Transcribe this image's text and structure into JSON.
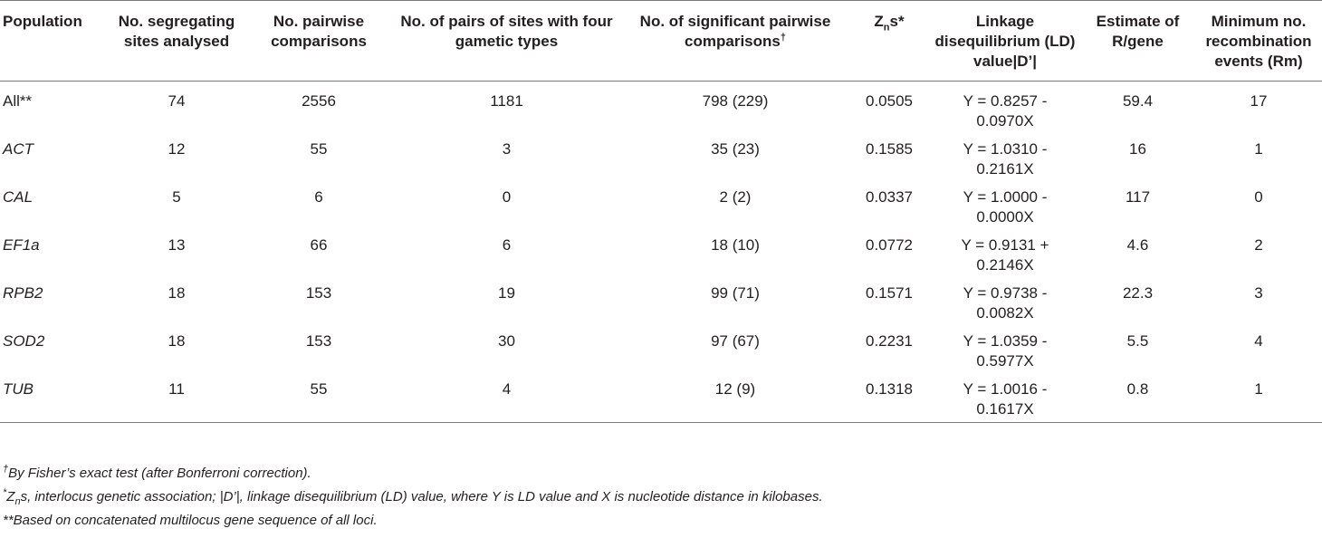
{
  "table": {
    "headers": [
      {
        "text": "Population"
      },
      {
        "text": "No. segregating sites analysed"
      },
      {
        "text": "No. pairwise comparisons"
      },
      {
        "text": "No. of pairs of sites with four gametic types"
      },
      {
        "text": "No. of significant pairwise comparisons",
        "sup": "†"
      },
      {
        "text": "Z",
        "sub": "n",
        "tail": "s*"
      },
      {
        "text": "Linkage disequilibrium (LD) value|D’|"
      },
      {
        "text": "Estimate of R/gene"
      },
      {
        "text": "Minimum no. recombination events (Rm)"
      }
    ],
    "rows": [
      {
        "population": "All**",
        "italic": false,
        "sites": "74",
        "pairwise": "2556",
        "four_gametic": "1181",
        "significant": "798 (229)",
        "zns": "0.0505",
        "ld_a": "Y = 0.8257 -",
        "ld_b": "0.0970X",
        "r_gene": "59.4",
        "rm": "17"
      },
      {
        "population": "ACT",
        "italic": true,
        "sites": "12",
        "pairwise": "55",
        "four_gametic": "3",
        "significant": "35 (23)",
        "zns": "0.1585",
        "ld_a": "Y = 1.0310 -",
        "ld_b": "0.2161X",
        "r_gene": "16",
        "rm": "1"
      },
      {
        "population": "CAL",
        "italic": true,
        "sites": "5",
        "pairwise": "6",
        "four_gametic": "0",
        "significant": "2 (2)",
        "zns": "0.0337",
        "ld_a": "Y = 1.0000 -",
        "ld_b": "0.0000X",
        "r_gene": "117",
        "rm": "0"
      },
      {
        "population": "EF1a",
        "italic": true,
        "sites": "13",
        "pairwise": "66",
        "four_gametic": "6",
        "significant": "18 (10)",
        "zns": "0.0772",
        "ld_a": "Y = 0.9131 +",
        "ld_b": "0.2146X",
        "r_gene": "4.6",
        "rm": "2"
      },
      {
        "population": "RPB2",
        "italic": true,
        "sites": "18",
        "pairwise": "153",
        "four_gametic": "19",
        "significant": "99 (71)",
        "zns": "0.1571",
        "ld_a": "Y = 0.9738 -",
        "ld_b": "0.0082X",
        "r_gene": "22.3",
        "rm": "3"
      },
      {
        "population": "SOD2",
        "italic": true,
        "sites": "18",
        "pairwise": "153",
        "four_gametic": "30",
        "significant": "97 (67)",
        "zns": "0.2231",
        "ld_a": "Y = 1.0359 -",
        "ld_b": "0.5977X",
        "r_gene": "5.5",
        "rm": "4"
      },
      {
        "population": "TUB",
        "italic": true,
        "sites": "11",
        "pairwise": "55",
        "four_gametic": "4",
        "significant": "12 (9)",
        "zns": "0.1318",
        "ld_a": "Y = 1.0016 -",
        "ld_b": "0.1617X",
        "r_gene": "0.8",
        "rm": "1"
      }
    ]
  },
  "footnotes": {
    "dagger": {
      "mark": "†",
      "text": "By Fisher’s exact test (after Bonferroni correction)."
    },
    "star": {
      "mark": "*",
      "z": "Z",
      "zsub": "n",
      "text": "s, interlocus genetic association; |D’|, linkage disequilibrium (LD) value, where Y is LD value and X is nucleotide distance in kilobases."
    },
    "doublestar": {
      "text": "**Based on concatenated multilocus gene sequence of all loci."
    }
  }
}
